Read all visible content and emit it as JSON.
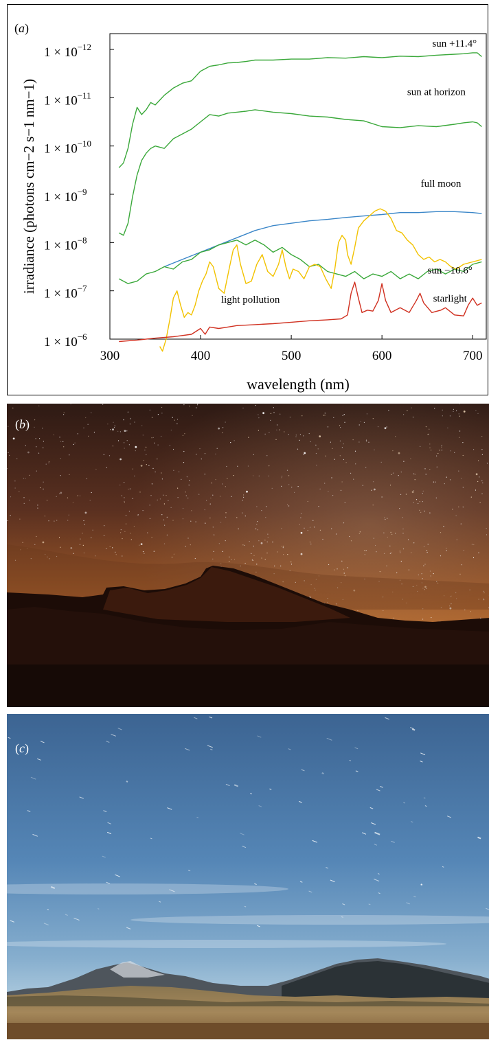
{
  "panel_labels": {
    "a": "a",
    "b": "b",
    "c": "c"
  },
  "chart_data": {
    "type": "line",
    "xlabel": "wavelength (nm)",
    "ylabel": "irradiance (photons cm−2 s−1 nm−1)",
    "xlim": [
      300,
      715
    ],
    "ylim_decades": [
      0,
      6
    ],
    "x_ticks": [
      300,
      400,
      500,
      600,
      700
    ],
    "y_ticks": [
      {
        "base": "1 × 10",
        "exp": "−12",
        "decade": 0
      },
      {
        "base": "1 × 10",
        "exp": "−11",
        "decade": 1
      },
      {
        "base": "1 × 10",
        "exp": "−10",
        "decade": 2
      },
      {
        "base": "1 × 10",
        "exp": "−9",
        "decade": 3
      },
      {
        "base": "1 × 10",
        "exp": "−8",
        "decade": 4
      },
      {
        "base": "1 × 10",
        "exp": "−7",
        "decade": 5
      },
      {
        "base": "1 × 10",
        "exp": "−6",
        "decade": 6
      }
    ],
    "grid": false,
    "series": [
      {
        "name": "sun +11.4°",
        "color": "#3aa83a",
        "x": [
          310,
          315,
          320,
          325,
          330,
          335,
          340,
          345,
          350,
          355,
          360,
          370,
          380,
          390,
          400,
          410,
          420,
          430,
          440,
          450,
          460,
          480,
          500,
          520,
          540,
          560,
          580,
          600,
          620,
          640,
          660,
          680,
          690,
          700,
          705,
          710
        ],
        "y": [
          2.45,
          2.35,
          2.05,
          1.55,
          1.2,
          1.35,
          1.25,
          1.1,
          1.15,
          1.05,
          0.95,
          0.8,
          0.7,
          0.65,
          0.45,
          0.35,
          0.32,
          0.28,
          0.27,
          0.25,
          0.22,
          0.22,
          0.2,
          0.2,
          0.17,
          0.18,
          0.15,
          0.17,
          0.14,
          0.15,
          0.12,
          0.1,
          0.09,
          0.07,
          0.07,
          0.15
        ]
      },
      {
        "name": "sun at horizon",
        "color": "#3aa83a",
        "x": [
          310,
          315,
          320,
          325,
          330,
          335,
          340,
          345,
          350,
          360,
          370,
          380,
          390,
          400,
          410,
          420,
          430,
          440,
          450,
          460,
          480,
          500,
          520,
          540,
          560,
          580,
          600,
          620,
          640,
          660,
          680,
          690,
          700,
          705,
          710
        ],
        "y": [
          3.8,
          3.85,
          3.6,
          3.05,
          2.6,
          2.3,
          2.15,
          2.05,
          2.0,
          2.05,
          1.85,
          1.75,
          1.65,
          1.5,
          1.35,
          1.38,
          1.32,
          1.3,
          1.28,
          1.25,
          1.3,
          1.33,
          1.38,
          1.4,
          1.45,
          1.48,
          1.6,
          1.62,
          1.58,
          1.6,
          1.55,
          1.52,
          1.5,
          1.52,
          1.6
        ]
      },
      {
        "name": "full moon",
        "color": "#3a86c8",
        "x": [
          360,
          380,
          400,
          420,
          440,
          460,
          480,
          500,
          520,
          540,
          560,
          580,
          600,
          620,
          640,
          660,
          680,
          700,
          710
        ],
        "y": [
          4.5,
          4.35,
          4.2,
          4.05,
          3.9,
          3.75,
          3.65,
          3.6,
          3.55,
          3.52,
          3.48,
          3.45,
          3.42,
          3.38,
          3.38,
          3.36,
          3.36,
          3.38,
          3.4
        ]
      },
      {
        "name": "sun −10.6°",
        "color": "#3aa83a",
        "x": [
          310,
          320,
          330,
          340,
          350,
          360,
          370,
          380,
          390,
          400,
          410,
          420,
          430,
          440,
          450,
          460,
          470,
          480,
          490,
          500,
          510,
          520,
          530,
          540,
          550,
          560,
          570,
          580,
          590,
          600,
          610,
          620,
          630,
          640,
          650,
          660,
          670,
          680,
          690,
          700,
          710
        ],
        "y": [
          4.75,
          4.85,
          4.8,
          4.65,
          4.6,
          4.5,
          4.55,
          4.4,
          4.35,
          4.2,
          4.15,
          4.05,
          4.0,
          3.95,
          4.05,
          3.95,
          4.05,
          4.2,
          4.1,
          4.25,
          4.35,
          4.5,
          4.45,
          4.6,
          4.65,
          4.7,
          4.6,
          4.75,
          4.65,
          4.7,
          4.6,
          4.75,
          4.65,
          4.75,
          4.6,
          4.55,
          4.65,
          4.55,
          4.6,
          4.45,
          4.4
        ]
      },
      {
        "name": "light pollution",
        "color": "#f2c200",
        "x": [
          355,
          358,
          362,
          366,
          370,
          374,
          378,
          382,
          386,
          390,
          394,
          398,
          402,
          406,
          410,
          414,
          420,
          426,
          432,
          436,
          440,
          444,
          450,
          456,
          462,
          468,
          474,
          480,
          486,
          490,
          494,
          498,
          502,
          508,
          514,
          520,
          526,
          532,
          538,
          544,
          548,
          552,
          556,
          560,
          562,
          566,
          570,
          574,
          580,
          586,
          592,
          598,
          604,
          610,
          616,
          622,
          628,
          634,
          640,
          646,
          652,
          658,
          664,
          670,
          676,
          682,
          690,
          700,
          710
        ],
        "y": [
          6.15,
          6.25,
          6.0,
          5.6,
          5.15,
          5.0,
          5.3,
          5.55,
          5.45,
          5.5,
          5.3,
          5.0,
          4.8,
          4.65,
          4.4,
          4.5,
          4.95,
          5.05,
          4.5,
          4.15,
          4.05,
          4.45,
          4.85,
          4.8,
          4.45,
          4.25,
          4.6,
          4.7,
          4.45,
          4.15,
          4.5,
          4.75,
          4.55,
          4.6,
          4.75,
          4.5,
          4.45,
          4.5,
          4.75,
          4.95,
          4.55,
          4.0,
          3.85,
          3.95,
          4.25,
          4.45,
          4.1,
          3.7,
          3.55,
          3.45,
          3.35,
          3.3,
          3.35,
          3.5,
          3.75,
          3.8,
          3.95,
          4.05,
          4.25,
          4.35,
          4.3,
          4.4,
          4.35,
          4.4,
          4.5,
          4.55,
          4.45,
          4.4,
          4.35
        ]
      },
      {
        "name": "starlight",
        "color": "#d03020",
        "x": [
          310,
          330,
          350,
          370,
          390,
          400,
          405,
          410,
          420,
          430,
          440,
          460,
          480,
          500,
          520,
          540,
          555,
          562,
          566,
          570,
          574,
          578,
          584,
          590,
          596,
          600,
          604,
          610,
          620,
          630,
          638,
          642,
          646,
          655,
          665,
          670,
          680,
          690,
          695,
          700,
          705,
          710
        ],
        "y": [
          6.05,
          6.02,
          5.98,
          5.95,
          5.9,
          5.78,
          5.9,
          5.75,
          5.78,
          5.75,
          5.72,
          5.7,
          5.68,
          5.65,
          5.62,
          5.6,
          5.58,
          5.5,
          5.05,
          4.82,
          5.15,
          5.45,
          5.4,
          5.42,
          5.2,
          4.85,
          5.2,
          5.45,
          5.35,
          5.45,
          5.2,
          5.05,
          5.25,
          5.45,
          5.4,
          5.35,
          5.5,
          5.52,
          5.3,
          5.15,
          5.3,
          5.25
        ]
      }
    ],
    "annotations": [
      {
        "text": "sun +11.4°",
        "x": 680,
        "y": 0.0
      },
      {
        "text": "sun at horizon",
        "x": 660,
        "y": 1.0
      },
      {
        "text": "full moon",
        "x": 665,
        "y": 2.9
      },
      {
        "text": "sun −10.6°",
        "x": 675,
        "y": 4.7
      },
      {
        "text": "light pollution",
        "x": 455,
        "y": 5.3
      },
      {
        "text": "starlight",
        "x": 675,
        "y": 5.28
      }
    ]
  },
  "photos": {
    "b": {
      "sky_top": "#3a2018",
      "sky_mid": "#8a4a22",
      "horizon_glow": "#d88a40",
      "ground": "#1e0e08",
      "cliff": "#3a1a0e"
    },
    "c": {
      "sky_top": "#3f6796",
      "sky_mid": "#5e8cba",
      "horizon": "#a8c7dc",
      "hills_far": "#5a6068",
      "hills_near": "#2d3336",
      "grass": "#9a7e4e",
      "grass_front": "#6b4f2c"
    }
  }
}
